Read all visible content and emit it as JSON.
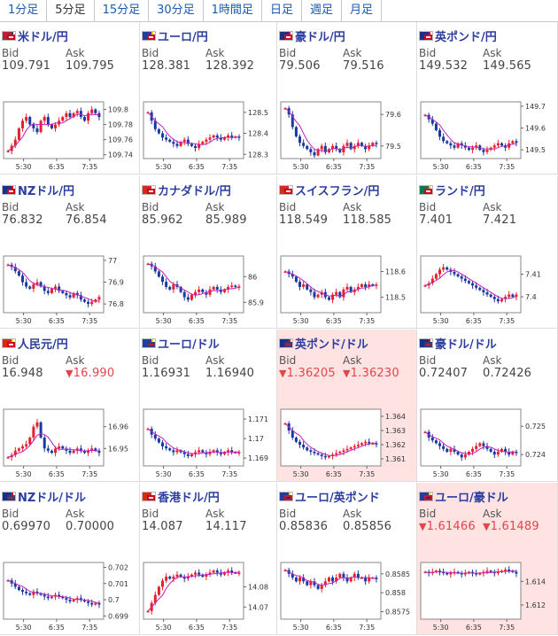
{
  "tabs": [
    {
      "label": "1分足",
      "active": false
    },
    {
      "label": "5分足",
      "active": true
    },
    {
      "label": "15分足",
      "active": false
    },
    {
      "label": "30分足",
      "active": false
    },
    {
      "label": "1時間足",
      "active": false
    },
    {
      "label": "日足",
      "active": false
    },
    {
      "label": "週足",
      "active": false
    },
    {
      "label": "月足",
      "active": false
    }
  ],
  "labels": {
    "bid": "Bid",
    "ask": "Ask"
  },
  "colors": {
    "up": "#e8202a",
    "down": "#1a3aa0",
    "ma": "#c020c0",
    "ma2": "#00a0a0",
    "alert_bg": "#ffe2e2",
    "link": "#2b3d9e"
  },
  "pairs": [
    {
      "name": "米ドル/円",
      "bid": "109.791",
      "ask": "109.795",
      "bid_dir": "",
      "ask_dir": "",
      "alert": false,
      "flags": [
        "us",
        "jp"
      ],
      "chart_data": {
        "type": "candlestick",
        "x_labels": [
          "5:30",
          "6:35",
          "7:35"
        ],
        "y_ticks": [
          "109.8",
          "109.78",
          "109.76",
          "109.74"
        ],
        "y_tick_values": [
          109.8,
          109.78,
          109.76,
          109.74
        ],
        "ylim": [
          109.735,
          109.81
        ],
        "series": [
          109.745,
          109.752,
          109.76,
          109.775,
          109.785,
          109.79,
          109.78,
          109.775,
          109.77,
          109.785,
          109.79,
          109.78,
          109.775,
          109.78,
          109.785,
          109.79,
          109.795,
          109.79,
          109.795,
          109.798,
          109.79,
          109.785,
          109.795,
          109.8,
          109.795,
          109.79
        ]
      }
    },
    {
      "name": "ユーロ/円",
      "bid": "128.381",
      "ask": "128.392",
      "bid_dir": "",
      "ask_dir": "",
      "alert": false,
      "flags": [
        "eu",
        "jp"
      ],
      "chart_data": {
        "type": "candlestick",
        "x_labels": [
          "5:30",
          "6:35",
          "7:35"
        ],
        "y_ticks": [
          "128.5",
          "128.4",
          "128.3"
        ],
        "y_tick_values": [
          128.5,
          128.4,
          128.3
        ],
        "ylim": [
          128.28,
          128.55
        ],
        "series": [
          128.5,
          128.46,
          128.42,
          128.4,
          128.38,
          128.37,
          128.36,
          128.35,
          128.34,
          128.36,
          128.37,
          128.35,
          128.34,
          128.33,
          128.35,
          128.36,
          128.37,
          128.38,
          128.39,
          128.38,
          128.37,
          128.38,
          128.39,
          128.38,
          128.385,
          128.381
        ]
      }
    },
    {
      "name": "豪ドル/円",
      "bid": "79.506",
      "ask": "79.516",
      "bid_dir": "",
      "ask_dir": "",
      "alert": false,
      "flags": [
        "au",
        "jp"
      ],
      "chart_data": {
        "type": "candlestick",
        "x_labels": [
          "5:30",
          "6:35",
          "7:35"
        ],
        "y_ticks": [
          "79.6",
          "79.5"
        ],
        "y_tick_values": [
          79.6,
          79.5
        ],
        "ylim": [
          79.46,
          79.64
        ],
        "series": [
          79.62,
          79.6,
          79.56,
          79.53,
          79.51,
          79.5,
          79.49,
          79.48,
          79.47,
          79.49,
          79.5,
          79.48,
          79.49,
          79.5,
          79.49,
          79.48,
          79.5,
          79.51,
          79.49,
          79.5,
          79.51,
          79.5,
          79.49,
          79.5,
          79.51,
          79.506
        ]
      }
    },
    {
      "name": "英ポンド/円",
      "bid": "149.532",
      "ask": "149.565",
      "bid_dir": "",
      "ask_dir": "",
      "alert": false,
      "flags": [
        "gb",
        "jp"
      ],
      "chart_data": {
        "type": "candlestick",
        "x_labels": [
          "5:30",
          "6:35",
          "7:35"
        ],
        "y_ticks": [
          "149.7",
          "149.6",
          "149.5"
        ],
        "y_tick_values": [
          149.7,
          149.6,
          149.5
        ],
        "ylim": [
          149.46,
          149.72
        ],
        "series": [
          149.66,
          149.64,
          149.62,
          149.59,
          149.56,
          149.54,
          149.53,
          149.52,
          149.51,
          149.53,
          149.52,
          149.51,
          149.5,
          149.51,
          149.52,
          149.5,
          149.49,
          149.5,
          149.51,
          149.52,
          149.53,
          149.52,
          149.51,
          149.53,
          149.54,
          149.532
        ]
      }
    },
    {
      "name": "NZドル/円",
      "bid": "76.832",
      "ask": "76.854",
      "bid_dir": "",
      "ask_dir": "",
      "alert": false,
      "flags": [
        "nz",
        "jp"
      ],
      "chart_data": {
        "type": "candlestick",
        "x_labels": [
          "5:30",
          "6:35",
          "7:35"
        ],
        "y_ticks": [
          "77",
          "76.9",
          "76.8"
        ],
        "y_tick_values": [
          77,
          76.9,
          76.8
        ],
        "ylim": [
          76.76,
          77.02
        ],
        "series": [
          76.98,
          76.97,
          76.95,
          76.93,
          76.9,
          76.88,
          76.87,
          76.89,
          76.9,
          76.88,
          76.86,
          76.85,
          76.87,
          76.88,
          76.86,
          76.85,
          76.84,
          76.83,
          76.85,
          76.84,
          76.82,
          76.81,
          76.8,
          76.81,
          76.82,
          76.832
        ]
      }
    },
    {
      "name": "カナダドル/円",
      "bid": "85.962",
      "ask": "85.989",
      "bid_dir": "",
      "ask_dir": "",
      "alert": false,
      "flags": [
        "ca",
        "jp"
      ],
      "chart_data": {
        "type": "candlestick",
        "x_labels": [
          "5:30",
          "6:35",
          "7:35"
        ],
        "y_ticks": [
          "86",
          "85.9"
        ],
        "y_tick_values": [
          86,
          85.9
        ],
        "ylim": [
          85.86,
          86.08
        ],
        "series": [
          86.05,
          86.04,
          86.02,
          86.0,
          85.98,
          85.96,
          85.95,
          85.97,
          85.96,
          85.94,
          85.92,
          85.91,
          85.93,
          85.94,
          85.95,
          85.94,
          85.93,
          85.95,
          85.96,
          85.95,
          85.94,
          85.95,
          85.96,
          85.965,
          85.96,
          85.962
        ]
      }
    },
    {
      "name": "スイスフラン/円",
      "bid": "118.549",
      "ask": "118.585",
      "bid_dir": "",
      "ask_dir": "",
      "alert": false,
      "flags": [
        "ch",
        "jp"
      ],
      "chart_data": {
        "type": "candlestick",
        "x_labels": [
          "5:30",
          "6:35",
          "7:35"
        ],
        "y_ticks": [
          "118.6",
          "118.5"
        ],
        "y_tick_values": [
          118.6,
          118.5
        ],
        "ylim": [
          118.44,
          118.66
        ],
        "series": [
          118.6,
          118.59,
          118.58,
          118.56,
          118.54,
          118.55,
          118.53,
          118.52,
          118.5,
          118.51,
          118.52,
          118.5,
          118.49,
          118.51,
          118.52,
          118.5,
          118.53,
          118.54,
          118.52,
          118.53,
          118.54,
          118.55,
          118.54,
          118.55,
          118.545,
          118.549
        ]
      }
    },
    {
      "name": "ランド/円",
      "bid": "7.401",
      "ask": "7.421",
      "bid_dir": "",
      "ask_dir": "",
      "alert": false,
      "flags": [
        "za",
        "jp"
      ],
      "chart_data": {
        "type": "candlestick",
        "x_labels": [
          "5:30",
          "6:35",
          "7:35"
        ],
        "y_ticks": [
          "7.41",
          "7.4"
        ],
        "y_tick_values": [
          7.41,
          7.4
        ],
        "ylim": [
          7.393,
          7.418
        ],
        "series": [
          7.405,
          7.406,
          7.408,
          7.41,
          7.412,
          7.413,
          7.412,
          7.411,
          7.41,
          7.409,
          7.408,
          7.407,
          7.406,
          7.405,
          7.404,
          7.403,
          7.402,
          7.401,
          7.4,
          7.399,
          7.398,
          7.399,
          7.4,
          7.401,
          7.4,
          7.401
        ]
      }
    },
    {
      "name": "人民元/円",
      "bid": "16.948",
      "ask": "16.990",
      "bid_dir": "",
      "ask_dir": "down",
      "alert": false,
      "flags": [
        "cn",
        "jp"
      ],
      "chart_data": {
        "type": "candlestick",
        "x_labels": [
          "5:30",
          "6:35",
          "7:35"
        ],
        "y_ticks": [
          "16.96",
          "16.95"
        ],
        "y_tick_values": [
          16.96,
          16.95
        ],
        "ylim": [
          16.942,
          16.968
        ],
        "series": [
          16.946,
          16.947,
          16.949,
          16.95,
          16.951,
          16.952,
          16.955,
          16.96,
          16.962,
          16.955,
          16.95,
          16.949,
          16.948,
          16.95,
          16.951,
          16.95,
          16.949,
          16.948,
          16.949,
          16.95,
          16.949,
          16.948,
          16.949,
          16.95,
          16.949,
          16.948
        ]
      }
    },
    {
      "name": "ユーロ/ドル",
      "bid": "1.16931",
      "ask": "1.16940",
      "bid_dir": "",
      "ask_dir": "",
      "alert": false,
      "flags": [
        "eu",
        "us"
      ],
      "chart_data": {
        "type": "candlestick",
        "x_labels": [
          "5:30",
          "6:35",
          "7:35"
        ],
        "y_ticks": [
          "1.171",
          "1.17",
          "1.169"
        ],
        "y_tick_values": [
          1.171,
          1.17,
          1.169
        ],
        "ylim": [
          1.1686,
          1.1715
        ],
        "series": [
          1.1705,
          1.1702,
          1.17,
          1.1698,
          1.1696,
          1.1695,
          1.1694,
          1.1693,
          1.1694,
          1.1693,
          1.1692,
          1.1691,
          1.1692,
          1.1693,
          1.1694,
          1.1693,
          1.1692,
          1.1693,
          1.1694,
          1.1693,
          1.1692,
          1.1693,
          1.1694,
          1.1693,
          1.1693,
          1.1693
        ]
      }
    },
    {
      "name": "英ポンド/ドル",
      "bid": "1.36205",
      "ask": "1.36230",
      "bid_dir": "down",
      "ask_dir": "down",
      "alert": true,
      "flags": [
        "gb",
        "us"
      ],
      "chart_data": {
        "type": "candlestick",
        "x_labels": [
          "5:30",
          "6:35",
          "7:35"
        ],
        "y_ticks": [
          "1.364",
          "1.363",
          "1.362",
          "1.361"
        ],
        "y_tick_values": [
          1.364,
          1.363,
          1.362,
          1.361
        ],
        "ylim": [
          1.3605,
          1.3645
        ],
        "series": [
          1.3635,
          1.363,
          1.3625,
          1.3622,
          1.362,
          1.3618,
          1.3616,
          1.3615,
          1.3614,
          1.3613,
          1.3612,
          1.3611,
          1.3612,
          1.3613,
          1.3614,
          1.3615,
          1.3616,
          1.3617,
          1.3618,
          1.3619,
          1.362,
          1.3621,
          1.3622,
          1.3621,
          1.3621,
          1.36205
        ]
      }
    },
    {
      "name": "豪ドル/ドル",
      "bid": "0.72407",
      "ask": "0.72426",
      "bid_dir": "",
      "ask_dir": "",
      "alert": false,
      "flags": [
        "au",
        "us"
      ],
      "chart_data": {
        "type": "candlestick",
        "x_labels": [
          "5:30",
          "6:35",
          "7:35"
        ],
        "y_ticks": [
          "0.725",
          "0.724"
        ],
        "y_tick_values": [
          0.725,
          0.724
        ],
        "ylim": [
          0.7236,
          0.7256
        ],
        "series": [
          0.7248,
          0.7246,
          0.7245,
          0.7244,
          0.7243,
          0.7242,
          0.7241,
          0.7242,
          0.7241,
          0.724,
          0.7239,
          0.724,
          0.7241,
          0.7242,
          0.7243,
          0.7244,
          0.7243,
          0.7242,
          0.7241,
          0.724,
          0.7241,
          0.7242,
          0.7241,
          0.724,
          0.7241,
          0.72407
        ]
      }
    },
    {
      "name": "NZドル/ドル",
      "bid": "0.69970",
      "ask": "0.70000",
      "bid_dir": "",
      "ask_dir": "",
      "alert": false,
      "flags": [
        "nz",
        "us"
      ],
      "chart_data": {
        "type": "candlestick",
        "x_labels": [
          "5:30",
          "6:35",
          "7:35"
        ],
        "y_ticks": [
          "0.702",
          "0.701",
          "0.7",
          "0.699"
        ],
        "y_tick_values": [
          0.702,
          0.701,
          0.7,
          0.699
        ],
        "ylim": [
          0.6988,
          0.7023
        ],
        "series": [
          0.7012,
          0.701,
          0.7008,
          0.7006,
          0.7005,
          0.7004,
          0.7003,
          0.7005,
          0.7004,
          0.7003,
          0.7002,
          0.7001,
          0.7002,
          0.7003,
          0.7002,
          0.7001,
          0.7,
          0.6999,
          0.7,
          0.7001,
          0.7,
          0.6999,
          0.6998,
          0.6997,
          0.6998,
          0.6997
        ]
      }
    },
    {
      "name": "香港ドル/円",
      "bid": "14.087",
      "ask": "14.117",
      "bid_dir": "",
      "ask_dir": "",
      "alert": false,
      "flags": [
        "hk",
        "jp"
      ],
      "chart_data": {
        "type": "candlestick",
        "x_labels": [
          "5:30",
          "6:35",
          "7:35"
        ],
        "y_ticks": [
          "14.08",
          "14.07"
        ],
        "y_tick_values": [
          14.08,
          14.07
        ],
        "ylim": [
          14.064,
          14.092
        ],
        "series": [
          14.068,
          14.072,
          14.076,
          14.08,
          14.083,
          14.085,
          14.084,
          14.085,
          14.086,
          14.085,
          14.084,
          14.085,
          14.086,
          14.087,
          14.086,
          14.085,
          14.086,
          14.087,
          14.088,
          14.087,
          14.086,
          14.087,
          14.088,
          14.087,
          14.087,
          14.087
        ]
      }
    },
    {
      "name": "ユーロ/英ポンド",
      "bid": "0.85836",
      "ask": "0.85856",
      "bid_dir": "",
      "ask_dir": "",
      "alert": false,
      "flags": [
        "eu",
        "gb"
      ],
      "chart_data": {
        "type": "candlestick",
        "x_labels": [
          "5:30",
          "6:35",
          "7:35"
        ],
        "y_ticks": [
          "0.8585",
          "0.858",
          "0.8575"
        ],
        "y_tick_values": [
          0.8585,
          0.858,
          0.8575
        ],
        "ylim": [
          0.8573,
          0.8588
        ],
        "series": [
          0.8586,
          0.8585,
          0.8584,
          0.8583,
          0.8584,
          0.8583,
          0.8582,
          0.8583,
          0.8582,
          0.8581,
          0.8582,
          0.8583,
          0.8584,
          0.8583,
          0.8584,
          0.8585,
          0.8584,
          0.8583,
          0.8584,
          0.8585,
          0.8584,
          0.8584,
          0.8583,
          0.8584,
          0.8584,
          0.85836
        ]
      }
    },
    {
      "name": "ユーロ/豪ドル",
      "bid": "1.61466",
      "ask": "1.61489",
      "bid_dir": "down",
      "ask_dir": "down",
      "alert": true,
      "flags": [
        "eu",
        "au"
      ],
      "chart_data": {
        "type": "candlestick",
        "x_labels": [
          "5:30",
          "6:35",
          "7:35"
        ],
        "y_ticks": [
          "1.614",
          "1.612"
        ],
        "y_tick_values": [
          1.614,
          1.612
        ],
        "ylim": [
          1.6108,
          1.6156
        ],
        "series": [
          1.6148,
          1.6147,
          1.6148,
          1.6149,
          1.6148,
          1.6147,
          1.6146,
          1.6147,
          1.6148,
          1.6147,
          1.6146,
          1.6147,
          1.6148,
          1.6147,
          1.6146,
          1.6147,
          1.6148,
          1.6149,
          1.6148,
          1.6147,
          1.6148,
          1.6149,
          1.615,
          1.6149,
          1.6148,
          1.61466
        ]
      }
    }
  ]
}
